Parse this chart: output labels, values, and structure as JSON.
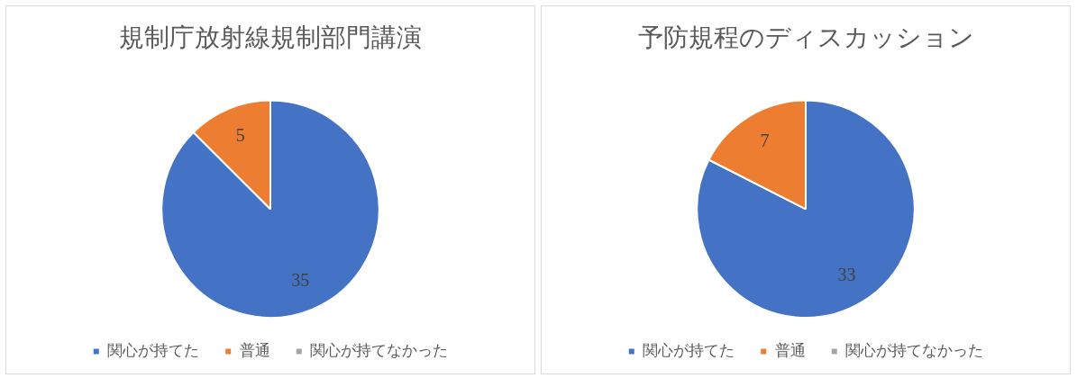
{
  "chart_data": [
    {
      "type": "pie",
      "title": "規制庁放射線規制部門講演",
      "categories": [
        "関心が持てた",
        "普通",
        "関心が持てなかった"
      ],
      "values": [
        35,
        5,
        0
      ],
      "colors": [
        "#4472c4",
        "#ed7d31",
        "#a5a5a5"
      ],
      "value_labels": [
        "35",
        "5",
        null
      ],
      "legend": "bottom"
    },
    {
      "type": "pie",
      "title": "予防規程のディスカッション",
      "categories": [
        "関心が持てた",
        "普通",
        "関心が持てなかった"
      ],
      "values": [
        33,
        7,
        0
      ],
      "colors": [
        "#4472c4",
        "#ed7d31",
        "#a5a5a5"
      ],
      "value_labels": [
        "33",
        "7",
        null
      ],
      "legend": "bottom"
    }
  ]
}
